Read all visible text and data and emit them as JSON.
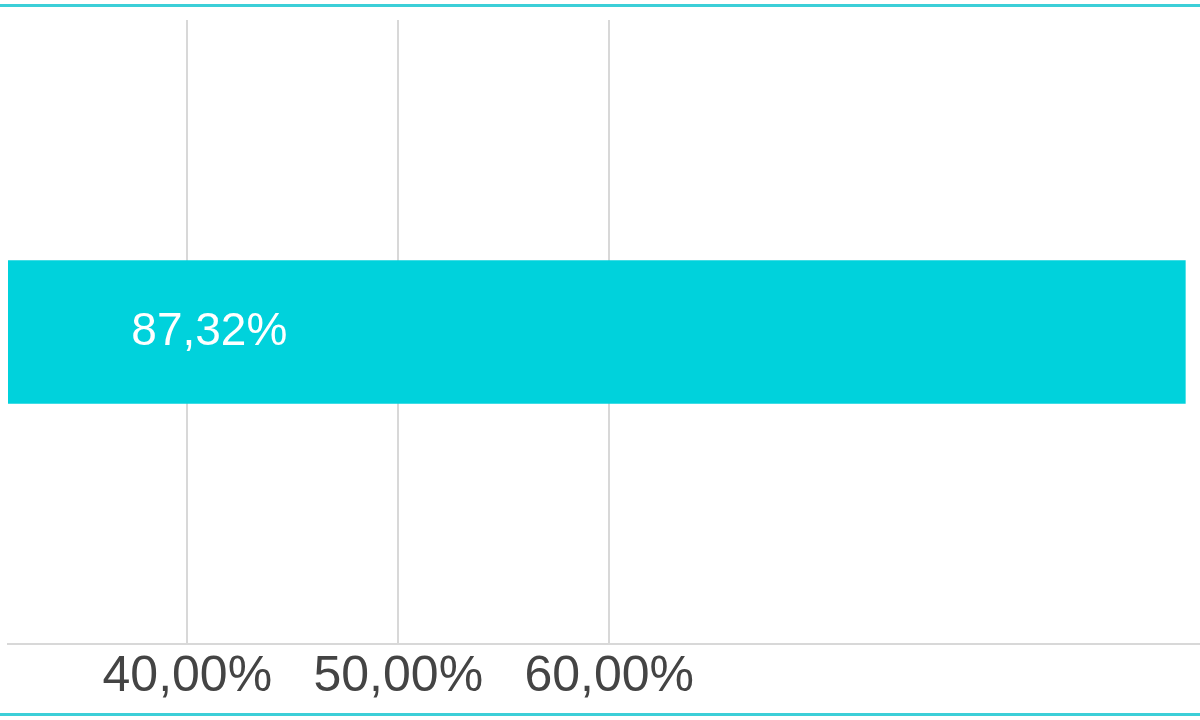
{
  "chart_data": {
    "type": "bar",
    "orientation": "horizontal",
    "categories": [
      null
    ],
    "series": [
      {
        "color": "#00d2dc",
        "values": [
          87.32
        ]
      }
    ],
    "value_labels": [
      "87,32%"
    ],
    "xlim": [
      31.5,
      88
    ],
    "xticks": [
      {
        "value": 40,
        "label": "40,00%"
      },
      {
        "value": 50,
        "label": "50,00%"
      },
      {
        "value": 60,
        "label": "60,00%"
      }
    ],
    "grid": "x",
    "legend": false
  }
}
